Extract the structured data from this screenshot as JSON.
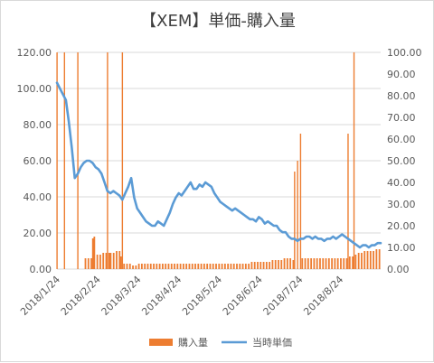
{
  "chart_data": {
    "type": "bar+line",
    "title": "【XEM】単価-購入量",
    "y_left": {
      "ticks": [
        "0.00",
        "20.00",
        "40.00",
        "60.00",
        "80.00",
        "100.00",
        "120.00"
      ],
      "lim": [
        0,
        120
      ]
    },
    "y_right": {
      "ticks": [
        "0.00",
        "10.00",
        "20.00",
        "30.00",
        "40.00",
        "50.00",
        "60.00",
        "70.00",
        "80.00",
        "90.00",
        "100.00"
      ],
      "lim": [
        0,
        100
      ]
    },
    "x_ticks": [
      "2018/1/24",
      "2018/2/24",
      "2018/3/24",
      "2018/4/24",
      "2018/5/24",
      "2018/6/24",
      "2018/7/24",
      "2018/8/24"
    ],
    "x_range_days": [
      0,
      218
    ],
    "grid": true,
    "legend": {
      "placement": "bottom"
    },
    "series": [
      {
        "name": "購入量",
        "type": "bar",
        "axis": "left",
        "color": "#ed7d31",
        "points": [
          [
            0,
            120
          ],
          [
            5,
            120
          ],
          [
            14,
            120
          ],
          [
            19,
            6
          ],
          [
            21,
            6
          ],
          [
            23,
            6
          ],
          [
            24,
            17
          ],
          [
            25,
            18
          ],
          [
            27,
            8
          ],
          [
            29,
            8
          ],
          [
            31,
            9
          ],
          [
            33,
            9
          ],
          [
            34,
            120
          ],
          [
            35,
            9
          ],
          [
            36,
            9
          ],
          [
            38,
            9
          ],
          [
            40,
            10
          ],
          [
            42,
            10
          ],
          [
            43,
            7
          ],
          [
            44,
            120
          ],
          [
            45,
            3
          ],
          [
            47,
            3
          ],
          [
            49,
            3
          ],
          [
            51,
            2
          ],
          [
            53,
            2
          ],
          [
            55,
            3
          ],
          [
            57,
            3
          ],
          [
            59,
            3
          ],
          [
            61,
            3
          ],
          [
            63,
            3
          ],
          [
            65,
            3
          ],
          [
            67,
            3
          ],
          [
            69,
            3
          ],
          [
            71,
            3
          ],
          [
            73,
            3
          ],
          [
            75,
            3
          ],
          [
            77,
            3
          ],
          [
            79,
            3
          ],
          [
            81,
            3
          ],
          [
            83,
            3
          ],
          [
            85,
            3
          ],
          [
            87,
            3
          ],
          [
            89,
            3
          ],
          [
            91,
            3
          ],
          [
            93,
            3
          ],
          [
            95,
            3
          ],
          [
            97,
            3
          ],
          [
            99,
            3
          ],
          [
            101,
            3
          ],
          [
            103,
            3
          ],
          [
            105,
            3
          ],
          [
            107,
            3
          ],
          [
            109,
            3
          ],
          [
            111,
            3
          ],
          [
            113,
            3
          ],
          [
            115,
            3
          ],
          [
            117,
            3
          ],
          [
            119,
            3
          ],
          [
            121,
            3
          ],
          [
            123,
            3
          ],
          [
            125,
            3
          ],
          [
            127,
            3
          ],
          [
            129,
            3
          ],
          [
            131,
            4
          ],
          [
            133,
            4
          ],
          [
            135,
            4
          ],
          [
            137,
            4
          ],
          [
            139,
            4
          ],
          [
            141,
            4
          ],
          [
            143,
            4
          ],
          [
            145,
            5
          ],
          [
            147,
            5
          ],
          [
            149,
            5
          ],
          [
            151,
            5
          ],
          [
            153,
            6
          ],
          [
            155,
            6
          ],
          [
            157,
            6
          ],
          [
            159,
            5
          ],
          [
            160,
            54
          ],
          [
            162,
            60
          ],
          [
            164,
            75
          ],
          [
            165,
            6
          ],
          [
            167,
            6
          ],
          [
            169,
            6
          ],
          [
            171,
            6
          ],
          [
            173,
            6
          ],
          [
            175,
            6
          ],
          [
            177,
            6
          ],
          [
            179,
            6
          ],
          [
            181,
            6
          ],
          [
            183,
            6
          ],
          [
            185,
            6
          ],
          [
            187,
            6
          ],
          [
            189,
            6
          ],
          [
            191,
            6
          ],
          [
            193,
            6
          ],
          [
            195,
            6
          ],
          [
            196,
            75
          ],
          [
            197,
            7
          ],
          [
            199,
            7
          ],
          [
            200,
            120
          ],
          [
            201,
            8
          ],
          [
            203,
            9
          ],
          [
            205,
            9
          ],
          [
            207,
            10
          ],
          [
            209,
            10
          ],
          [
            211,
            10
          ],
          [
            213,
            10
          ],
          [
            215,
            11
          ],
          [
            217,
            11
          ]
        ]
      },
      {
        "name": "当時単価",
        "type": "line",
        "axis": "right",
        "color": "#5b9bd5",
        "points": [
          [
            0,
            86
          ],
          [
            3,
            82
          ],
          [
            6,
            78
          ],
          [
            8,
            68
          ],
          [
            10,
            56
          ],
          [
            12,
            42
          ],
          [
            14,
            44
          ],
          [
            16,
            47
          ],
          [
            18,
            49
          ],
          [
            20,
            50
          ],
          [
            22,
            50
          ],
          [
            24,
            49
          ],
          [
            26,
            47
          ],
          [
            28,
            46
          ],
          [
            30,
            44
          ],
          [
            32,
            40
          ],
          [
            34,
            36
          ],
          [
            36,
            35
          ],
          [
            38,
            36
          ],
          [
            40,
            35
          ],
          [
            42,
            34
          ],
          [
            44,
            32
          ],
          [
            46,
            35
          ],
          [
            48,
            38
          ],
          [
            50,
            42
          ],
          [
            52,
            33
          ],
          [
            54,
            28
          ],
          [
            56,
            26
          ],
          [
            58,
            24
          ],
          [
            60,
            22
          ],
          [
            62,
            21
          ],
          [
            64,
            20
          ],
          [
            66,
            20
          ],
          [
            68,
            22
          ],
          [
            70,
            21
          ],
          [
            72,
            20
          ],
          [
            74,
            23
          ],
          [
            76,
            26
          ],
          [
            78,
            30
          ],
          [
            80,
            33
          ],
          [
            82,
            35
          ],
          [
            84,
            34
          ],
          [
            86,
            36
          ],
          [
            88,
            38
          ],
          [
            90,
            40
          ],
          [
            92,
            37
          ],
          [
            94,
            37
          ],
          [
            96,
            39
          ],
          [
            98,
            38
          ],
          [
            100,
            40
          ],
          [
            102,
            39
          ],
          [
            104,
            38
          ],
          [
            106,
            35
          ],
          [
            108,
            33
          ],
          [
            110,
            31
          ],
          [
            112,
            30
          ],
          [
            114,
            29
          ],
          [
            116,
            28
          ],
          [
            118,
            27
          ],
          [
            120,
            28
          ],
          [
            122,
            27
          ],
          [
            124,
            26
          ],
          [
            126,
            25
          ],
          [
            128,
            24
          ],
          [
            130,
            23
          ],
          [
            132,
            23
          ],
          [
            134,
            22
          ],
          [
            136,
            24
          ],
          [
            138,
            23
          ],
          [
            140,
            21
          ],
          [
            142,
            22
          ],
          [
            144,
            21
          ],
          [
            146,
            20
          ],
          [
            148,
            20
          ],
          [
            150,
            18
          ],
          [
            152,
            17
          ],
          [
            154,
            17
          ],
          [
            156,
            15
          ],
          [
            158,
            14
          ],
          [
            160,
            14
          ],
          [
            162,
            13
          ],
          [
            164,
            14
          ],
          [
            166,
            14
          ],
          [
            168,
            15
          ],
          [
            170,
            15
          ],
          [
            172,
            14
          ],
          [
            174,
            15
          ],
          [
            176,
            14
          ],
          [
            178,
            14
          ],
          [
            180,
            13
          ],
          [
            182,
            14
          ],
          [
            184,
            14
          ],
          [
            186,
            15
          ],
          [
            188,
            14
          ],
          [
            190,
            15
          ],
          [
            192,
            16
          ],
          [
            194,
            15
          ],
          [
            196,
            14
          ],
          [
            198,
            13
          ],
          [
            200,
            12
          ],
          [
            202,
            11
          ],
          [
            204,
            10
          ],
          [
            206,
            11
          ],
          [
            208,
            11
          ],
          [
            210,
            10
          ],
          [
            212,
            11
          ],
          [
            214,
            11
          ],
          [
            216,
            12
          ],
          [
            218,
            12
          ]
        ]
      }
    ]
  }
}
